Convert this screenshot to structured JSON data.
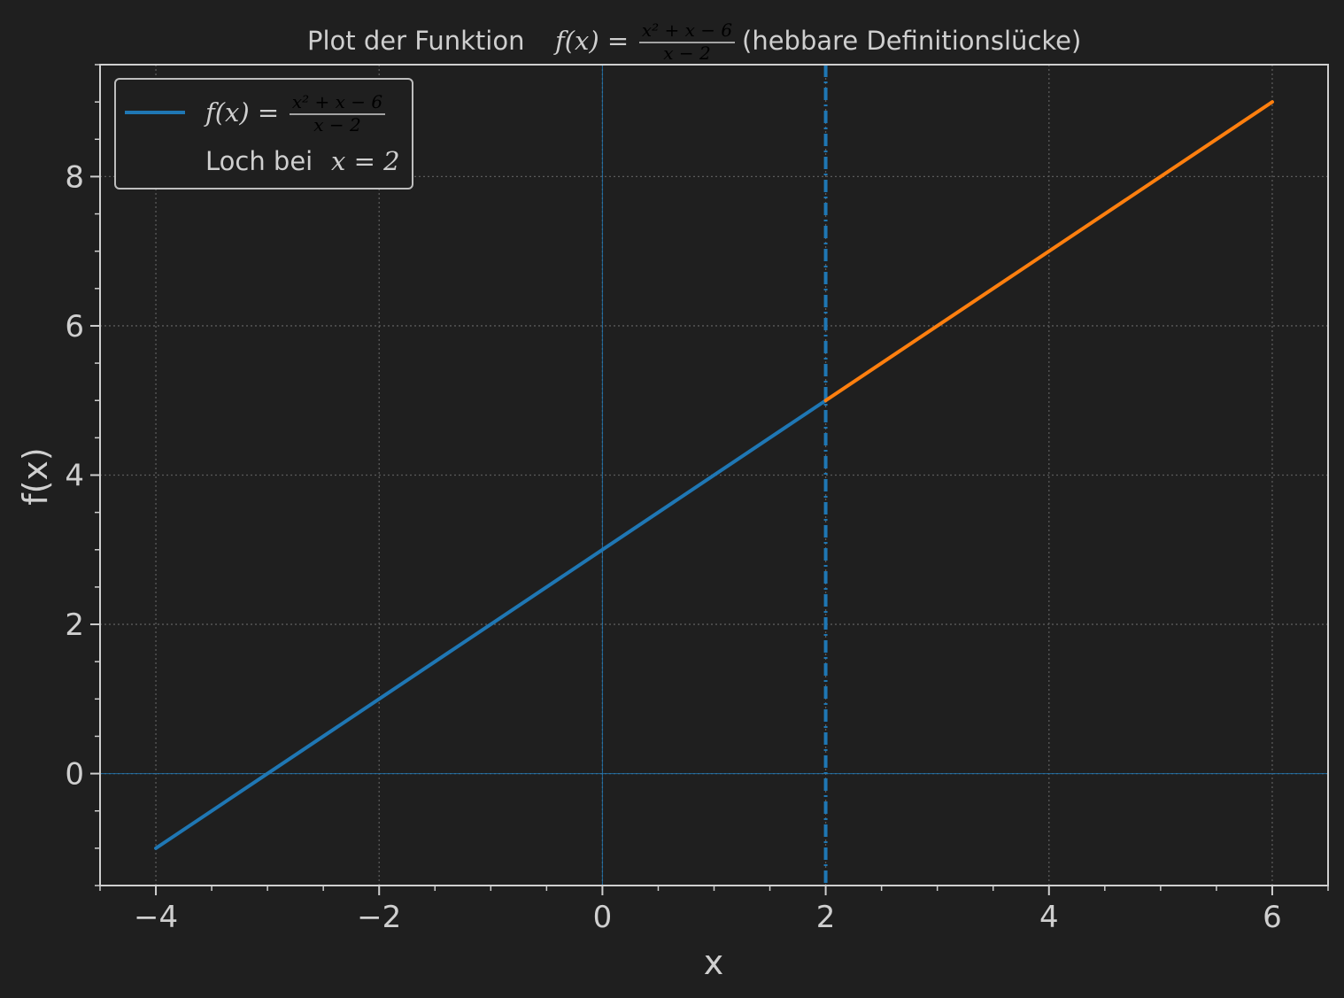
{
  "chart_data": {
    "type": "line",
    "title_prefix": "Plot der Funktion ",
    "title_math": "f(x) = ",
    "title_num": "x² + x − 6",
    "title_den": "x − 2",
    "title_suffix": " (hebbare Definitionslücke)",
    "xlabel": "x",
    "ylabel": "f(x)",
    "xlim": [
      -4.5,
      6.5
    ],
    "ylim": [
      -1.5,
      9.5
    ],
    "xticks": [
      -4,
      -2,
      0,
      2,
      4,
      6
    ],
    "xtick_labels": [
      "−4",
      "−2",
      "0",
      "2",
      "4",
      "6"
    ],
    "yticks": [
      0,
      2,
      4,
      6,
      8
    ],
    "ytick_labels": [
      "0",
      "2",
      "4",
      "6",
      "8"
    ],
    "grid": true,
    "legend_position": "top-left",
    "series": [
      {
        "name": "f(x) = (x² + x − 6)/(x − 2)",
        "color": "#1f77b4",
        "x": [
          -4,
          2
        ],
        "y": [
          -1,
          5
        ]
      },
      {
        "color": "#ff7f0e",
        "x": [
          2,
          6
        ],
        "y": [
          5,
          9
        ]
      }
    ],
    "vertical_line": {
      "x": 2,
      "style": "dashed",
      "color": "#1f77b4",
      "label": "Loch bei x = 2"
    },
    "reference_lines": {
      "x": 0,
      "y": 0,
      "color": "#1f77b4"
    },
    "legend": {
      "entry1_math": "f(x) = ",
      "entry1_num": "x² + x − 6",
      "entry1_den": "x − 2",
      "entry2_text": "Loch bei ",
      "entry2_math": "x = 2"
    },
    "colors": {
      "background": "#1f1f1f",
      "axis": "#cfcfcf",
      "grid": "#5a5a5a",
      "blue": "#1f77b4",
      "orange": "#ff7f0e"
    }
  }
}
